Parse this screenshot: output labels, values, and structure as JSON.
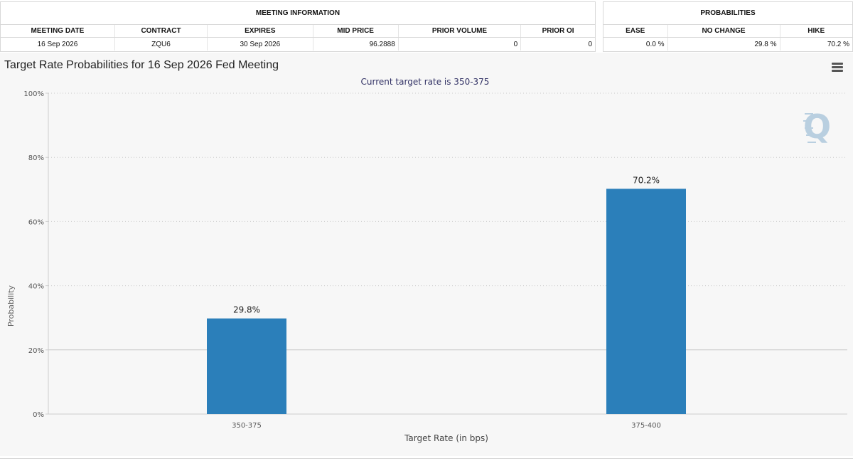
{
  "meeting_info": {
    "section_title": "MEETING INFORMATION",
    "headers": [
      "MEETING DATE",
      "CONTRACT",
      "EXPIRES",
      "MID PRICE",
      "PRIOR VOLUME",
      "PRIOR OI"
    ],
    "row": [
      "16 Sep 2026",
      "ZQU6",
      "30 Sep 2026",
      "96.2888",
      "0",
      "0"
    ]
  },
  "probabilities": {
    "section_title": "PROBABILITIES",
    "headers": [
      "EASE",
      "NO CHANGE",
      "HIKE"
    ],
    "row": [
      "0.0 %",
      "29.8 %",
      "70.2 %"
    ]
  },
  "chart_data": {
    "type": "bar",
    "title": "Target Rate Probabilities for 16 Sep 2026 Fed Meeting",
    "subtitle": "Current target rate is 350-375",
    "xlabel": "Target Rate (in bps)",
    "ylabel": "Probability",
    "categories": [
      "350-375",
      "375-400"
    ],
    "values": [
      29.8,
      70.2
    ],
    "data_labels": [
      "29.8%",
      "70.2%"
    ],
    "ylim": [
      0,
      100
    ],
    "yticks": [
      0,
      20,
      40,
      60,
      80,
      100
    ],
    "ytick_labels": [
      "0%",
      "20%",
      "40%",
      "60%",
      "80%",
      "100%"
    ],
    "bar_color": "#2b7fba",
    "grid": true,
    "legend": "none"
  }
}
